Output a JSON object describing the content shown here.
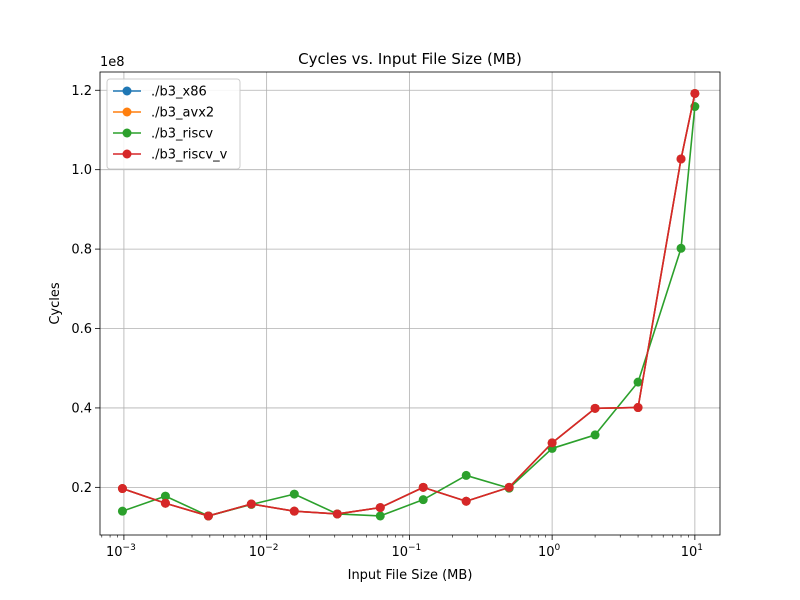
{
  "chart_data": {
    "type": "line",
    "title": "Cycles vs. Input File Size (MB)",
    "xlabel": "Input File Size (MB)",
    "ylabel": "Cycles",
    "x_scale": "log",
    "xlim": [
      0.00068,
      15.0
    ],
    "ylim": [
      8000000,
      124600000
    ],
    "y_offset_label": "1e8",
    "x_ticks": [
      0.001,
      0.01,
      0.1,
      1,
      10
    ],
    "x_tick_labels": [
      {
        "base": "10",
        "exp": "−3"
      },
      {
        "base": "10",
        "exp": "−2"
      },
      {
        "base": "10",
        "exp": "−1"
      },
      {
        "base": "10",
        "exp": "0"
      },
      {
        "base": "10",
        "exp": "1"
      }
    ],
    "y_ticks": [
      20000000,
      40000000,
      60000000,
      80000000,
      100000000,
      120000000
    ],
    "y_tick_labels": [
      "0.2",
      "0.4",
      "0.6",
      "0.8",
      "1.0",
      "1.2"
    ],
    "grid": true,
    "legend_position": "upper-left",
    "x": [
      0.0009765625,
      0.001953125,
      0.00390625,
      0.0078125,
      0.015625,
      0.03125,
      0.0625,
      0.125,
      0.25,
      0.5,
      1,
      2,
      4,
      8,
      10
    ],
    "series": [
      {
        "name": "./b3_x86",
        "color": "#1f77b4",
        "values": [
          19700000,
          16000000,
          12800000,
          15800000,
          14000000,
          13300000,
          14900000,
          20000000,
          16500000,
          20000000,
          31200000,
          39900000,
          40100000,
          102700000,
          119200000
        ]
      },
      {
        "name": "./b3_avx2",
        "color": "#ff7f0e",
        "values": [
          19700000,
          16000000,
          12800000,
          15800000,
          14000000,
          13300000,
          14900000,
          20000000,
          16500000,
          20000000,
          31200000,
          39900000,
          40100000,
          102700000,
          119200000
        ]
      },
      {
        "name": "./b3_riscv",
        "color": "#2ca02c",
        "values": [
          14000000,
          17800000,
          12800000,
          15700000,
          18300000,
          13300000,
          12800000,
          16900000,
          23000000,
          19800000,
          29800000,
          33200000,
          46500000,
          80200000,
          115900000
        ]
      },
      {
        "name": "./b3_riscv_v",
        "color": "#d62728",
        "values": [
          19700000,
          16000000,
          12800000,
          15800000,
          14000000,
          13300000,
          14900000,
          20000000,
          16500000,
          20000000,
          31200000,
          39900000,
          40100000,
          102700000,
          119200000
        ]
      }
    ]
  }
}
